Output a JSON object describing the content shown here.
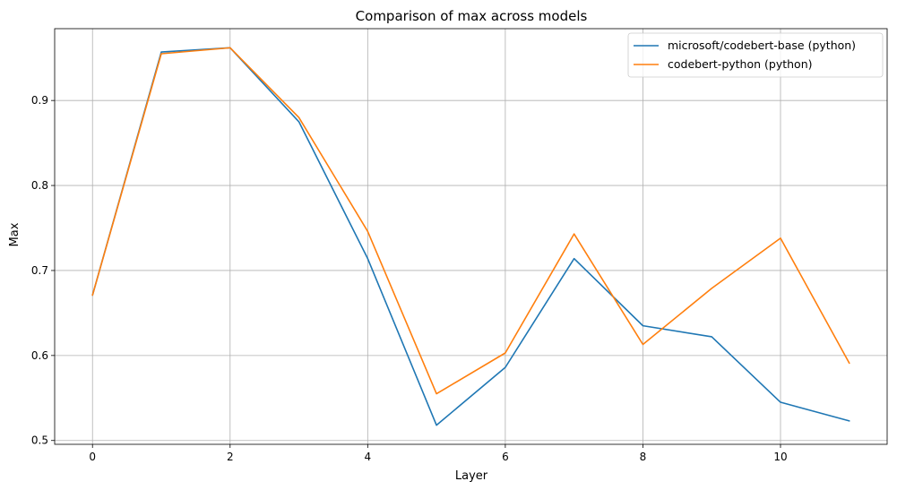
{
  "chart_data": {
    "type": "line",
    "title": "Comparison of max across models",
    "xlabel": "Layer",
    "ylabel": "Max",
    "x": [
      0,
      1,
      2,
      3,
      4,
      5,
      6,
      7,
      8,
      9,
      10,
      11
    ],
    "xlim": [
      -0.55,
      11.55
    ],
    "ylim": [
      0.4955,
      0.9845
    ],
    "xticks": [
      0,
      2,
      4,
      6,
      8,
      10
    ],
    "yticks": [
      0.5,
      0.6,
      0.7,
      0.8,
      0.9
    ],
    "grid": true,
    "legend_position": "top-right",
    "series": [
      {
        "name": "microsoft/codebert-base (python)",
        "color": "#1f77b4",
        "values": [
          0.671,
          0.957,
          0.962,
          0.875,
          0.714,
          0.518,
          0.586,
          0.714,
          0.635,
          0.622,
          0.545,
          0.523
        ]
      },
      {
        "name": "codebert-python (python)",
        "color": "#ff7f0e",
        "values": [
          0.671,
          0.955,
          0.962,
          0.88,
          0.746,
          0.555,
          0.603,
          0.743,
          0.613,
          0.679,
          0.738,
          0.591
        ]
      }
    ]
  }
}
